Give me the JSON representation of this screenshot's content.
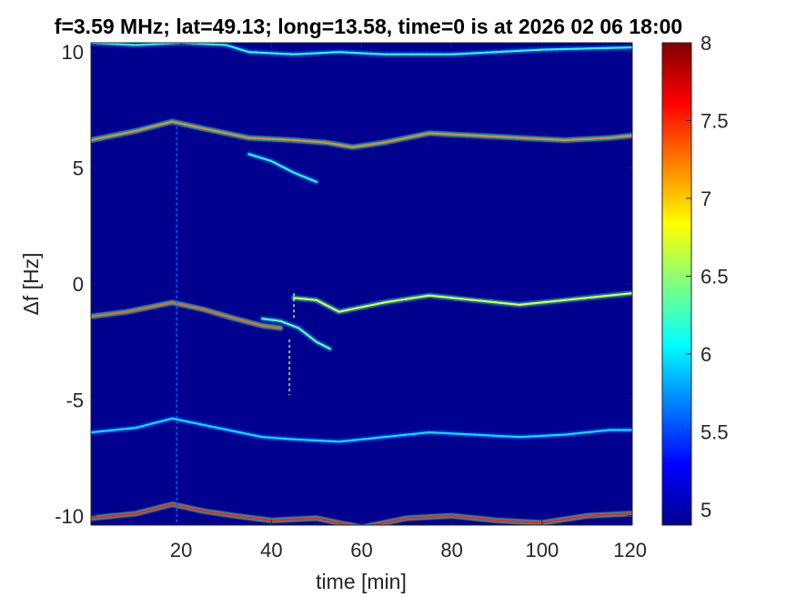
{
  "chart_data": {
    "type": "heatmap",
    "title": "f=3.59 MHz;  lat=49.13; long=13.58, time=0 is at 2026 02 06 18:00",
    "xlabel": "time [min]",
    "ylabel": "Δf [Hz]",
    "xlim": [
      0,
      120
    ],
    "ylim": [
      -10.4,
      10.4
    ],
    "xticks": [
      20,
      40,
      60,
      80,
      100,
      120
    ],
    "xtick_labels": [
      "20",
      "40",
      "60",
      "80",
      "100",
      "120"
    ],
    "yticks": [
      10,
      5,
      0,
      -5,
      -10
    ],
    "ytick_labels": [
      "10",
      "5",
      "0",
      "-5",
      "-10"
    ],
    "colorbar": {
      "range": [
        4.9,
        8
      ],
      "ticks": [
        8,
        7.5,
        7,
        6.5,
        6,
        5.5,
        5
      ],
      "tick_labels": [
        "8",
        "7.5",
        "7",
        "6.5",
        "6",
        "5.5",
        "5"
      ],
      "colormap": "jet"
    },
    "background_color": "#00008f",
    "traces": [
      {
        "name": "upper",
        "intensity": 7.2,
        "x": [
          0,
          10,
          18,
          25,
          35,
          45,
          52,
          58,
          65,
          75,
          85,
          95,
          105,
          115,
          120
        ],
        "y": [
          6.2,
          6.6,
          7.0,
          6.7,
          6.3,
          6.2,
          6.1,
          5.9,
          6.1,
          6.5,
          6.4,
          6.3,
          6.2,
          6.3,
          6.4
        ]
      },
      {
        "name": "center-left",
        "intensity": 7.3,
        "x": [
          0,
          8,
          18,
          25,
          32,
          38,
          42
        ],
        "y": [
          -1.4,
          -1.2,
          -0.8,
          -1.1,
          -1.5,
          -1.8,
          -1.9
        ]
      },
      {
        "name": "center-right",
        "intensity": 6.8,
        "x": [
          45,
          50,
          55,
          60,
          65,
          75,
          85,
          95,
          105,
          115,
          120
        ],
        "y": [
          -0.6,
          -0.7,
          -1.2,
          -1.0,
          -0.8,
          -0.5,
          -0.7,
          -0.9,
          -0.7,
          -0.5,
          -0.4
        ]
      },
      {
        "name": "lower",
        "intensity": 6.0,
        "x": [
          0,
          10,
          18,
          28,
          38,
          45,
          55,
          65,
          75,
          85,
          95,
          105,
          115,
          120
        ],
        "y": [
          -6.4,
          -6.2,
          -5.8,
          -6.2,
          -6.6,
          -6.7,
          -6.8,
          -6.6,
          -6.4,
          -6.5,
          -6.6,
          -6.5,
          -6.3,
          -6.3
        ]
      },
      {
        "name": "bottom",
        "intensity": 7.5,
        "x": [
          0,
          10,
          18,
          25,
          32,
          40,
          50,
          60,
          70,
          80,
          90,
          100,
          110,
          120
        ],
        "y": [
          -10.1,
          -9.9,
          -9.5,
          -9.8,
          -10.0,
          -10.2,
          -10.1,
          -10.5,
          -10.1,
          -10.0,
          -10.2,
          -10.3,
          -10.0,
          -9.9
        ]
      },
      {
        "name": "top",
        "intensity": 6.2,
        "x": [
          0,
          10,
          20,
          30,
          35,
          45,
          55,
          65,
          80,
          100,
          120
        ],
        "y": [
          10.4,
          10.3,
          10.4,
          10.3,
          10.0,
          9.9,
          10.0,
          9.9,
          9.9,
          10.1,
          10.2
        ]
      },
      {
        "name": "hook",
        "intensity": 6.4,
        "x": [
          38,
          42,
          46,
          50,
          53
        ],
        "y": [
          -1.5,
          -1.6,
          -1.9,
          -2.5,
          -2.8
        ]
      },
      {
        "name": "spur",
        "intensity": 6.2,
        "x": [
          35,
          40,
          45,
          50
        ],
        "y": [
          5.6,
          5.3,
          4.8,
          4.4
        ]
      }
    ],
    "vertical_artifacts": [
      {
        "x": 19,
        "y_range": [
          -10.4,
          6.8
        ],
        "intensity": 5.6
      },
      {
        "x": 44,
        "y_range": [
          -4.8,
          -2.4
        ],
        "intensity": 6.5
      },
      {
        "x": 45,
        "y_range": [
          -1.5,
          -0.4
        ],
        "intensity": 6.6
      }
    ]
  }
}
